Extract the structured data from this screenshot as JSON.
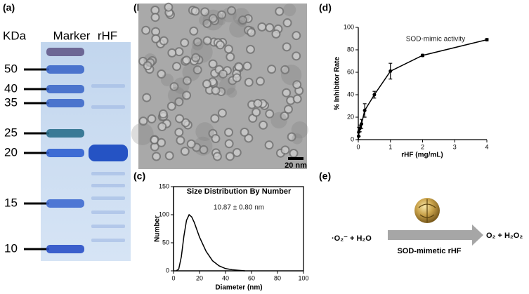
{
  "panels": {
    "a": {
      "label": "(a)",
      "unit": "KDa",
      "lanes": [
        "Marker",
        "rHF"
      ],
      "markers": [
        50,
        40,
        35,
        25,
        20,
        15,
        10
      ]
    },
    "b": {
      "label": "(b)",
      "scale_bar": "20 nm"
    },
    "c": {
      "label": "(c)"
    },
    "d": {
      "label": "(d)"
    },
    "e": {
      "label": "(e)",
      "reactants": "·O₂⁻ + H₂O",
      "catalyst": "SOD-mimetic rHF",
      "products": "O₂ + H₂O₂"
    }
  },
  "chart_data": [
    {
      "type": "line",
      "title": "Size Distribution By Number",
      "annotation": "10.87 ±  0.80 nm",
      "x_label": "Diameter (nm)",
      "y_label": "Number",
      "box": true,
      "color": "#000000",
      "x": [
        2,
        4,
        6,
        8,
        10,
        12,
        14,
        16,
        18,
        20,
        25,
        30,
        35,
        40,
        45,
        50,
        55
      ],
      "values": [
        0,
        3,
        25,
        62,
        90,
        100,
        96,
        86,
        73,
        60,
        35,
        18,
        9,
        4,
        2,
        1,
        0
      ],
      "xlim": [
        0,
        100
      ],
      "xticks": [
        0,
        20,
        40,
        60,
        80,
        100
      ],
      "ylim": [
        0,
        150
      ],
      "yticks": [
        0,
        50,
        100,
        150
      ]
    },
    {
      "type": "line",
      "annotation": "SOD-mimic activity",
      "x_label": "rHF (mg/mL)",
      "y_label": "% Inhibitor Rate",
      "box": false,
      "markers": true,
      "color": "#000000",
      "x": [
        0.01,
        0.02,
        0.05,
        0.1,
        0.2,
        0.5,
        1,
        2,
        4
      ],
      "values": [
        3,
        7,
        10,
        14,
        26,
        40,
        61,
        75,
        89
      ],
      "errors": [
        3,
        4,
        3,
        4,
        6,
        3,
        7,
        1,
        1
      ],
      "xlim": [
        0,
        4
      ],
      "xticks": [
        0,
        1,
        2,
        3,
        4
      ],
      "ylim": [
        0,
        100
      ],
      "yticks": [
        0,
        20,
        40,
        60,
        80,
        100
      ]
    }
  ]
}
